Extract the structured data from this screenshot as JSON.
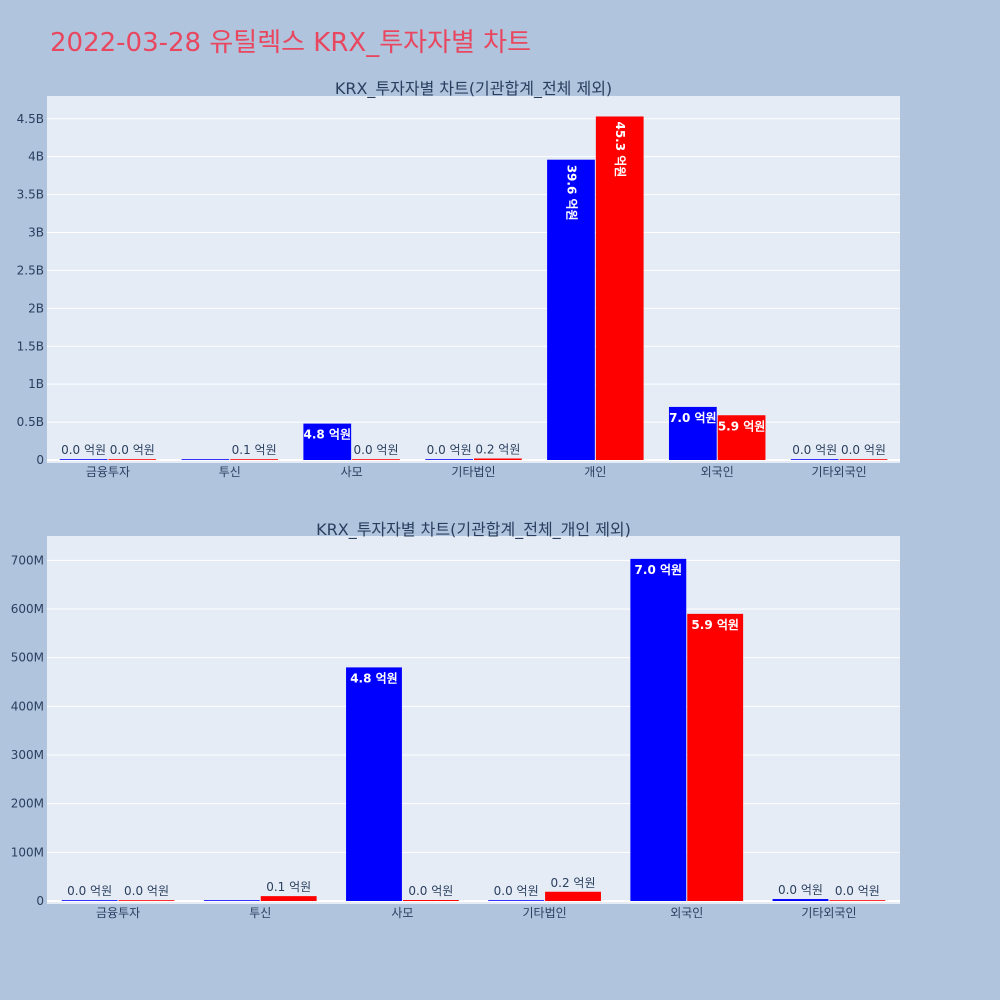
{
  "page": {
    "title": "2022-03-28 유틸렉스 KRX_투자자별 차트"
  },
  "chart_data": [
    {
      "type": "bar",
      "title": "KRX_투자자별 차트(기관합계_전체 제외)",
      "categories": [
        "금융투자",
        "투신",
        "사모",
        "기타법인",
        "개인",
        "외국인",
        "기타외국인"
      ],
      "series": [
        {
          "color": "#0000ff",
          "values": [
            0,
            0,
            480000000,
            0,
            3960000000,
            700000000,
            0
          ],
          "labels": [
            "0.0 억원",
            "",
            "4.8 억원",
            "0.0 억원",
            "39.6 억원",
            "7.0 억원",
            "0.0 억원"
          ]
        },
        {
          "color": "#ff0000",
          "values": [
            0,
            10000000,
            0,
            20000000,
            4530000000,
            590000000,
            0
          ],
          "labels": [
            "0.0 억원",
            "0.1 억원",
            "0.0 억원",
            "0.2 억원",
            "45.3 억원",
            "5.9 억원",
            "0.0 억원"
          ]
        }
      ],
      "yticks": [
        0,
        500000000,
        1000000000,
        1500000000,
        2000000000,
        2500000000,
        3000000000,
        3500000000,
        4000000000,
        4500000000
      ],
      "yticklabels": [
        "0",
        "0.5B",
        "1B",
        "1.5B",
        "2B",
        "2.5B",
        "3B",
        "3.5B",
        "4B",
        "4.5B"
      ],
      "ylim": [
        0,
        4800000000
      ],
      "grid": true
    },
    {
      "type": "bar",
      "title": "KRX_투자자별 차트(기관합계_전체_개인 제외)",
      "categories": [
        "금융투자",
        "투신",
        "사모",
        "기타법인",
        "외국인",
        "기타외국인"
      ],
      "series": [
        {
          "color": "#0000ff",
          "values": [
            0,
            0,
            480000000,
            0,
            703000000,
            4000000
          ],
          "labels": [
            "0.0 억원",
            "",
            "4.8 억원",
            "0.0 억원",
            "7.0 억원",
            "0.0 억원"
          ]
        },
        {
          "color": "#ff0000",
          "values": [
            0,
            10000000,
            2000000,
            19000000,
            590000000,
            0
          ],
          "labels": [
            "0.0 억원",
            "0.1 억원",
            "0.0 억원",
            "0.2 억원",
            "5.9 억원",
            "0.0 억원"
          ]
        }
      ],
      "yticks": [
        0,
        100000000,
        200000000,
        300000000,
        400000000,
        500000000,
        600000000,
        700000000
      ],
      "yticklabels": [
        "0",
        "100M",
        "200M",
        "300M",
        "400M",
        "500M",
        "600M",
        "700M"
      ],
      "ylim": [
        0,
        750000000
      ],
      "grid": true
    }
  ]
}
